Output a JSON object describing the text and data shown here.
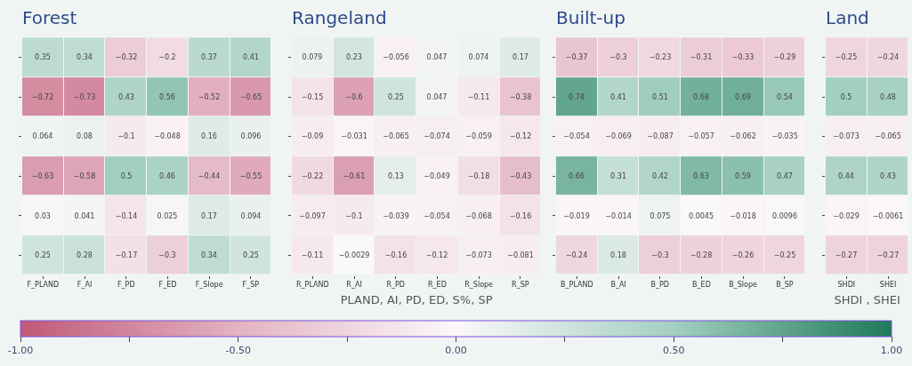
{
  "chart_data": [
    {
      "type": "heatmap",
      "title": "Forest",
      "categories": [
        "F_PLAND",
        "F_AI",
        "F_PD",
        "F_ED",
        "F_Slope",
        "F_SP"
      ],
      "y_categories": [
        null,
        null,
        null,
        null,
        null,
        null
      ],
      "cells": [
        [
          0.35,
          0.34,
          -0.32,
          -0.2,
          0.37,
          0.41
        ],
        [
          -0.72,
          -0.73,
          0.43,
          0.56,
          -0.52,
          -0.65
        ],
        [
          0.064,
          0.08,
          -0.1,
          -0.048,
          0.16,
          0.096
        ],
        [
          -0.63,
          -0.58,
          0.5,
          0.46,
          -0.44,
          -0.55
        ],
        [
          0.03,
          0.041,
          -0.14,
          0.025,
          0.17,
          0.094
        ],
        [
          0.25,
          0.28,
          -0.17,
          -0.3,
          0.34,
          0.25
        ]
      ],
      "clim": [
        -1,
        1
      ],
      "cticks": [
        {
          "value": 1,
          "label": "1.00"
        },
        {
          "value": 0.75,
          "label": null
        },
        {
          "value": 0.5,
          "label": "0.50"
        },
        {
          "value": 0.25,
          "label": null
        },
        {
          "value": 0,
          "label": "0.00"
        },
        {
          "value": -0.25,
          "label": null
        },
        {
          "value": -0.5,
          "label": "-0.50"
        },
        {
          "value": -0.75,
          "label": null
        },
        {
          "value": -1,
          "label": "-1.00"
        }
      ],
      "data_labels": true,
      "tick_labels": "x"
    },
    {
      "type": "heatmap",
      "title": "Rangeland",
      "xlabel": "PLAND, AI, PD, ED, S%, SP",
      "categories": [
        "R_PLAND",
        "R_AI",
        "R_PD",
        "R_ED",
        "R_Slope",
        "R_SP"
      ],
      "y_categories": [
        null,
        null,
        null,
        null,
        null,
        null
      ],
      "cells": [
        [
          0.079,
          0.23,
          -0.056,
          0.047,
          0.074,
          0.17
        ],
        [
          -0.15,
          -0.6,
          0.25,
          0.047,
          -0.11,
          -0.38
        ],
        [
          -0.09,
          -0.031,
          -0.065,
          -0.074,
          -0.059,
          -0.12
        ],
        [
          -0.22,
          -0.61,
          0.13,
          -0.049,
          -0.18,
          -0.43
        ],
        [
          -0.097,
          -0.1,
          -0.039,
          -0.054,
          -0.068,
          -0.16
        ],
        [
          -0.11,
          -0.0029,
          -0.16,
          -0.12,
          -0.073,
          -0.081
        ]
      ],
      "data_labels": true,
      "tick_labels": "x"
    },
    {
      "type": "heatmap",
      "title": "Built-up",
      "categories": [
        "B_PLAND",
        "B_AI",
        "B_PD",
        "B_ED",
        "B_Slope",
        "B_SP"
      ],
      "y_categories": [
        null,
        null,
        null,
        null,
        null,
        null
      ],
      "cells": [
        [
          -0.37,
          -0.3,
          -0.23,
          -0.31,
          -0.33,
          -0.29
        ],
        [
          0.74,
          0.41,
          0.51,
          0.68,
          0.69,
          0.54
        ],
        [
          -0.054,
          -0.069,
          -0.087,
          -0.057,
          -0.062,
          -0.035
        ],
        [
          0.66,
          0.31,
          0.42,
          0.63,
          0.59,
          0.47
        ],
        [
          -0.019,
          -0.014,
          0.075,
          0.0045,
          -0.018,
          0.0096
        ],
        [
          -0.24,
          0.18,
          -0.3,
          -0.28,
          -0.26,
          -0.25
        ]
      ],
      "data_labels": true,
      "tick_labels": "x"
    },
    {
      "type": "heatmap",
      "title": "Land",
      "xlabel": "SHDI , SHEI",
      "categories": [
        "SHDI",
        "SHEI"
      ],
      "y_categories": [
        null,
        null,
        null,
        null,
        null,
        null
      ],
      "cells": [
        [
          -0.25,
          -0.24
        ],
        [
          0.5,
          0.48
        ],
        [
          -0.073,
          -0.065
        ],
        [
          0.44,
          0.43
        ],
        [
          -0.029,
          -0.0061
        ],
        [
          -0.27,
          -0.27
        ]
      ],
      "data_labels": true,
      "tick_labels": "x"
    }
  ]
}
